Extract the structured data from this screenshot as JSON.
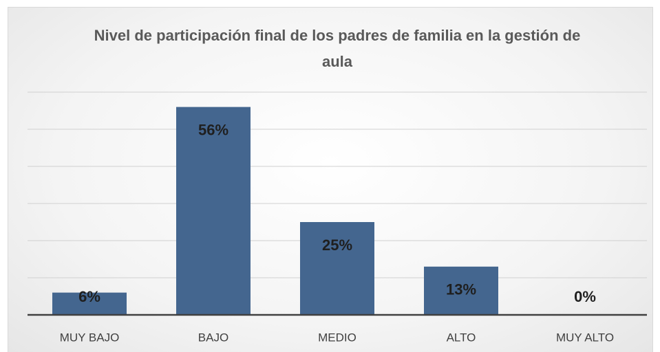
{
  "chart_data": {
    "type": "bar",
    "title": "Nivel de participación final de los padres de familia en la gestión de aula",
    "categories": [
      "MUY BAJO",
      "BAJO",
      "MEDIO",
      "ALTO",
      "MUY ALTO"
    ],
    "values": [
      6,
      56,
      25,
      13,
      0
    ],
    "value_labels": [
      "6%",
      "56%",
      "25%",
      "13%",
      "0%"
    ],
    "color": "#44668f",
    "ylim": [
      0,
      60
    ],
    "yticks": [
      0,
      10,
      20,
      30,
      40,
      50,
      60
    ],
    "grid": true
  }
}
